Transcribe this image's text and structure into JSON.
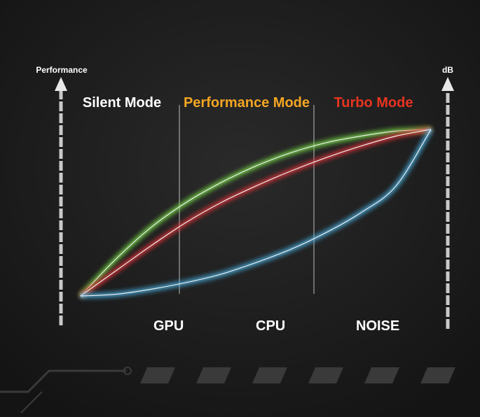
{
  "chart_data": {
    "type": "line",
    "title": "",
    "ylabel": "Performance",
    "y2label": "dB",
    "zones": [
      {
        "label": "Silent Mode",
        "color": "#ffffff"
      },
      {
        "label": "Performance Mode",
        "color": "#f5a623"
      },
      {
        "label": "Turbo Mode",
        "color": "#e8341f"
      }
    ],
    "x": [
      0,
      10,
      20,
      30,
      40,
      50,
      60,
      70,
      80,
      90,
      100
    ],
    "series": [
      {
        "name": "GPU",
        "color": "#7be34a",
        "values": [
          0,
          22,
          41,
          56,
          68,
          78,
          86,
          92,
          96,
          99,
          100
        ]
      },
      {
        "name": "CPU",
        "color": "#e8343a",
        "values": [
          0,
          15,
          30,
          44,
          56,
          66,
          75,
          83,
          90,
          96,
          100
        ]
      },
      {
        "name": "NOISE",
        "color": "#4bb4e6",
        "values": [
          0,
          1,
          4,
          8,
          13,
          20,
          28,
          38,
          50,
          66,
          100
        ]
      }
    ],
    "ylim": [
      0,
      100
    ],
    "legend_position": "bottom",
    "grid": false
  },
  "colors": {
    "background": "#1c1c1c",
    "axis": "#e8e8e8"
  }
}
